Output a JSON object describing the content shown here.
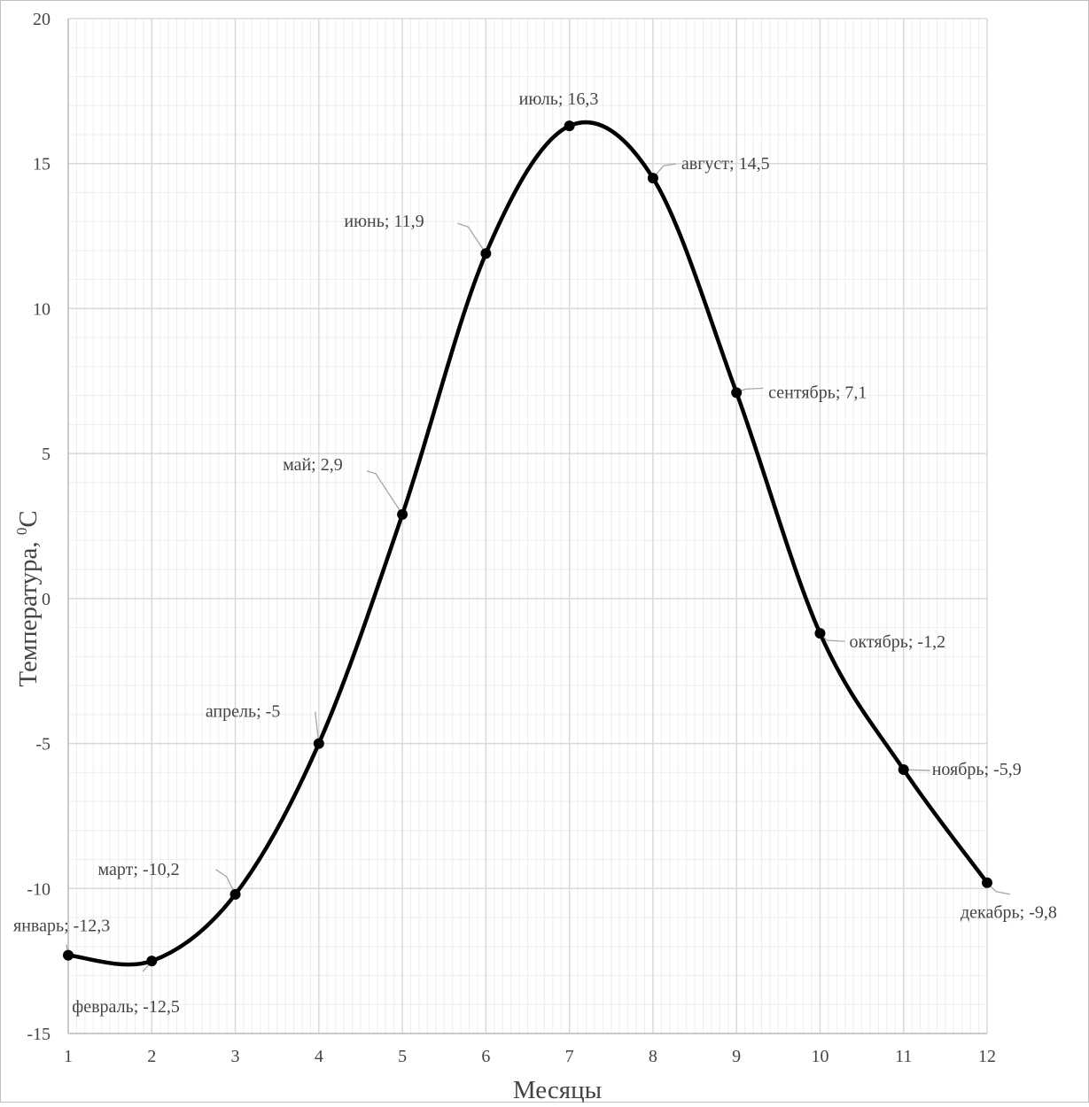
{
  "chart_data": {
    "type": "line",
    "xlabel": "Месяцы",
    "ylabel_main": "Температура, ",
    "ylabel_sup": "0",
    "ylabel_unit": "С",
    "xlim": [
      1,
      12
    ],
    "ylim": [
      -15,
      20
    ],
    "x_ticks": [
      1,
      2,
      3,
      4,
      5,
      6,
      7,
      8,
      9,
      10,
      11,
      12
    ],
    "y_ticks": [
      20,
      15,
      10,
      5,
      0,
      -5,
      -10,
      -15
    ],
    "grid": true,
    "minor_grid": true,
    "series": [
      {
        "points": [
          {
            "x": 1,
            "y": -12.3,
            "label": "январь; -12,3"
          },
          {
            "x": 2,
            "y": -12.5,
            "label": "февраль; -12,5"
          },
          {
            "x": 3,
            "y": -10.2,
            "label": "март; -10,2"
          },
          {
            "x": 4,
            "y": -5,
            "label": "апрель; -5"
          },
          {
            "x": 5,
            "y": 2.9,
            "label": "май; 2,9"
          },
          {
            "x": 6,
            "y": 11.9,
            "label": "июнь; 11,9"
          },
          {
            "x": 7,
            "y": 16.3,
            "label": "июль; 16,3"
          },
          {
            "x": 8,
            "y": 14.5,
            "label": "август; 14,5"
          },
          {
            "x": 9,
            "y": 7.1,
            "label": "сентябрь; 7,1"
          },
          {
            "x": 10,
            "y": -1.2,
            "label": "октябрь; -1,2"
          },
          {
            "x": 11,
            "y": -5.9,
            "label": "ноябрь; -5,9"
          },
          {
            "x": 12,
            "y": -9.8,
            "label": "декабрь; -9,8"
          }
        ]
      }
    ],
    "colors": {
      "line": "#000000",
      "major_grid": "#d9d9d9",
      "minor_grid": "#eeeeee",
      "leader": "#a6a6a6",
      "text": "#444444"
    }
  }
}
